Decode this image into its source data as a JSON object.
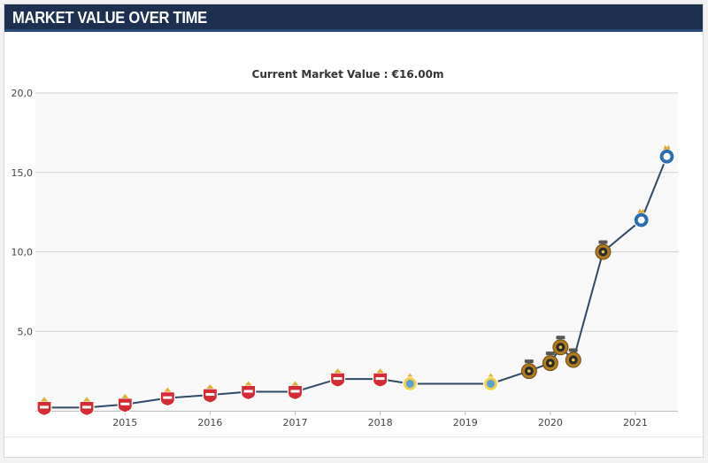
{
  "header": {
    "title": "MARKET VALUE OVER TIME"
  },
  "chart_data": {
    "type": "line",
    "title": "Current Market Value : €16.00m",
    "xlabel": "",
    "ylabel": "",
    "ylim": [
      0,
      20
    ],
    "yticks": [
      5,
      10,
      15,
      20
    ],
    "ytick_labels": [
      "5,0",
      "10,0",
      "15,0",
      "20,0"
    ],
    "xlim": [
      2014.05,
      2021.5
    ],
    "xticks": [
      2015,
      2016,
      2017,
      2018,
      2019,
      2020,
      2021
    ],
    "xtick_labels": [
      "2015",
      "2016",
      "2017",
      "2018",
      "2019",
      "2020",
      "2021"
    ],
    "grid": true,
    "line_color": "#2e4a66",
    "series": [
      {
        "values": [
          {
            "x": 2014.05,
            "y": 0.2,
            "club": "red-crest"
          },
          {
            "x": 2014.55,
            "y": 0.2,
            "club": "red-crest"
          },
          {
            "x": 2015.0,
            "y": 0.4,
            "club": "red-crest"
          },
          {
            "x": 2015.5,
            "y": 0.8,
            "club": "red-crest"
          },
          {
            "x": 2016.0,
            "y": 1.0,
            "club": "red-crest"
          },
          {
            "x": 2016.45,
            "y": 1.2,
            "club": "red-crest"
          },
          {
            "x": 2017.0,
            "y": 1.2,
            "club": "red-crest"
          },
          {
            "x": 2017.5,
            "y": 2.0,
            "club": "red-crest"
          },
          {
            "x": 2018.0,
            "y": 2.0,
            "club": "red-crest"
          },
          {
            "x": 2018.35,
            "y": 1.7,
            "club": "yellow-crest"
          },
          {
            "x": 2019.3,
            "y": 1.7,
            "club": "yellow-crest"
          },
          {
            "x": 2019.75,
            "y": 2.5,
            "club": "gold-crest"
          },
          {
            "x": 2020.0,
            "y": 3.0,
            "club": "gold-crest"
          },
          {
            "x": 2020.12,
            "y": 4.0,
            "club": "gold-crest"
          },
          {
            "x": 2020.27,
            "y": 3.2,
            "club": "gold-crest"
          },
          {
            "x": 2020.62,
            "y": 10.0,
            "club": "gold-crest"
          },
          {
            "x": 2021.07,
            "y": 12.0,
            "club": "blue-crest"
          },
          {
            "x": 2021.37,
            "y": 16.0,
            "club": "blue-crest"
          }
        ]
      }
    ],
    "club_colors": {
      "red-crest": "#d42b35",
      "yellow-crest": "#5aa0d8",
      "gold-crest": "#b07a1e",
      "blue-crest": "#2a6cb0"
    }
  }
}
